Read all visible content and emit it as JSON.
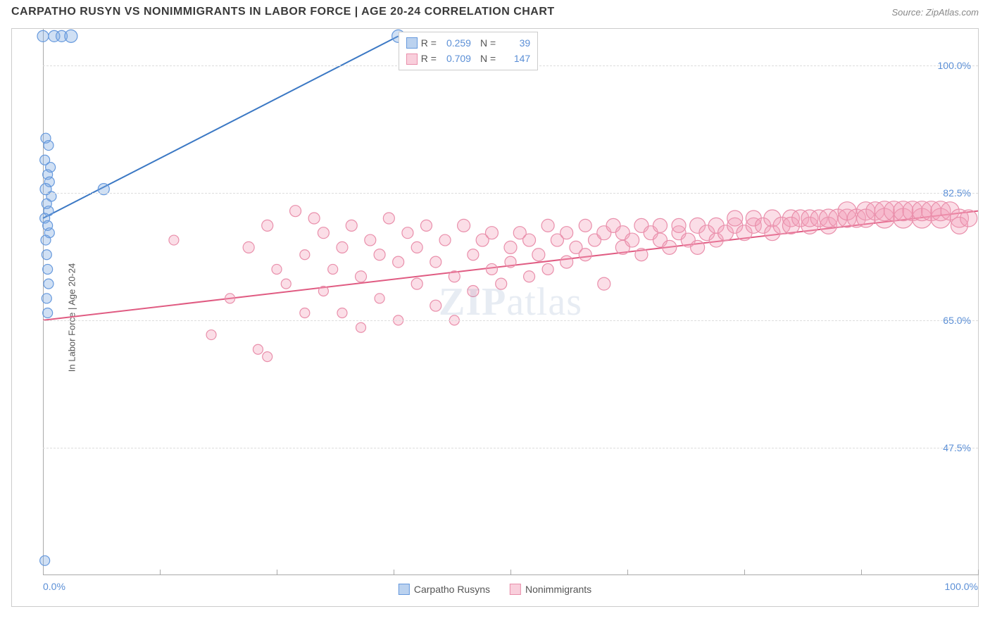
{
  "title": "CARPATHO RUSYN VS NONIMMIGRANTS IN LABOR FORCE | AGE 20-24 CORRELATION CHART",
  "source": "Source: ZipAtlas.com",
  "watermark": "ZIPatlas",
  "chart": {
    "type": "scatter",
    "y_axis_label": "In Labor Force | Age 20-24",
    "xlim": [
      0,
      100
    ],
    "ylim": [
      30,
      105
    ],
    "x_ticks": [
      0,
      12.5,
      25,
      37.5,
      50,
      62.5,
      75,
      87.5,
      100
    ],
    "x_tick_labels": {
      "0": "0.0%",
      "100": "100.0%"
    },
    "y_ticks": [
      47.5,
      65.0,
      82.5,
      100.0
    ],
    "y_tick_labels": [
      "47.5%",
      "65.0%",
      "82.5%",
      "100.0%"
    ],
    "background_color": "#ffffff",
    "grid_color": "#dddddd",
    "axis_color": "#aaaaaa",
    "label_color": "#5b8fd6",
    "series": [
      {
        "name": "Carpatho Rusyns",
        "color_fill": "rgba(120,165,224,0.35)",
        "color_stroke": "#6699dd",
        "line_color": "#3b78c4",
        "line_width": 2,
        "points": [
          {
            "x": 0.0,
            "y": 104,
            "r": 8
          },
          {
            "x": 1.2,
            "y": 104,
            "r": 8
          },
          {
            "x": 2.0,
            "y": 104,
            "r": 8
          },
          {
            "x": 3.0,
            "y": 104,
            "r": 9
          },
          {
            "x": 0.3,
            "y": 90,
            "r": 7
          },
          {
            "x": 0.6,
            "y": 89,
            "r": 7
          },
          {
            "x": 0.2,
            "y": 87,
            "r": 7
          },
          {
            "x": 0.8,
            "y": 86,
            "r": 7
          },
          {
            "x": 0.5,
            "y": 85,
            "r": 7
          },
          {
            "x": 0.7,
            "y": 84,
            "r": 7
          },
          {
            "x": 0.3,
            "y": 83,
            "r": 8
          },
          {
            "x": 0.9,
            "y": 82,
            "r": 7
          },
          {
            "x": 0.4,
            "y": 81,
            "r": 7
          },
          {
            "x": 0.6,
            "y": 80,
            "r": 7
          },
          {
            "x": 0.2,
            "y": 79,
            "r": 7
          },
          {
            "x": 0.5,
            "y": 78,
            "r": 7
          },
          {
            "x": 0.7,
            "y": 77,
            "r": 7
          },
          {
            "x": 0.3,
            "y": 76,
            "r": 7
          },
          {
            "x": 0.4,
            "y": 74,
            "r": 7
          },
          {
            "x": 0.5,
            "y": 72,
            "r": 7
          },
          {
            "x": 0.6,
            "y": 70,
            "r": 7
          },
          {
            "x": 0.4,
            "y": 68,
            "r": 7
          },
          {
            "x": 0.5,
            "y": 66,
            "r": 7
          },
          {
            "x": 6.5,
            "y": 83,
            "r": 8
          },
          {
            "x": 38,
            "y": 104,
            "r": 9
          },
          {
            "x": 0.2,
            "y": 32,
            "r": 7
          }
        ],
        "trend": {
          "x1": 0,
          "y1": 79,
          "x2": 38,
          "y2": 104
        },
        "stats": {
          "R": "0.259",
          "N": "39"
        }
      },
      {
        "name": "Nonimmigrants",
        "color_fill": "rgba(244,160,185,0.35)",
        "color_stroke": "#e98fab",
        "line_color": "#e05b82",
        "line_width": 2,
        "points": [
          {
            "x": 14,
            "y": 76,
            "r": 7
          },
          {
            "x": 18,
            "y": 63,
            "r": 7
          },
          {
            "x": 20,
            "y": 68,
            "r": 7
          },
          {
            "x": 22,
            "y": 75,
            "r": 8
          },
          {
            "x": 23,
            "y": 61,
            "r": 7
          },
          {
            "x": 24,
            "y": 60,
            "r": 7
          },
          {
            "x": 24,
            "y": 78,
            "r": 8
          },
          {
            "x": 25,
            "y": 72,
            "r": 7
          },
          {
            "x": 26,
            "y": 70,
            "r": 7
          },
          {
            "x": 27,
            "y": 80,
            "r": 8
          },
          {
            "x": 28,
            "y": 74,
            "r": 7
          },
          {
            "x": 28,
            "y": 66,
            "r": 7
          },
          {
            "x": 29,
            "y": 79,
            "r": 8
          },
          {
            "x": 30,
            "y": 69,
            "r": 7
          },
          {
            "x": 30,
            "y": 77,
            "r": 8
          },
          {
            "x": 31,
            "y": 72,
            "r": 7
          },
          {
            "x": 32,
            "y": 66,
            "r": 7
          },
          {
            "x": 32,
            "y": 75,
            "r": 8
          },
          {
            "x": 33,
            "y": 78,
            "r": 8
          },
          {
            "x": 34,
            "y": 71,
            "r": 8
          },
          {
            "x": 34,
            "y": 64,
            "r": 7
          },
          {
            "x": 35,
            "y": 76,
            "r": 8
          },
          {
            "x": 36,
            "y": 74,
            "r": 8
          },
          {
            "x": 36,
            "y": 68,
            "r": 7
          },
          {
            "x": 37,
            "y": 79,
            "r": 8
          },
          {
            "x": 38,
            "y": 73,
            "r": 8
          },
          {
            "x": 38,
            "y": 65,
            "r": 7
          },
          {
            "x": 39,
            "y": 77,
            "r": 8
          },
          {
            "x": 40,
            "y": 70,
            "r": 8
          },
          {
            "x": 40,
            "y": 75,
            "r": 8
          },
          {
            "x": 41,
            "y": 78,
            "r": 8
          },
          {
            "x": 42,
            "y": 67,
            "r": 8
          },
          {
            "x": 42,
            "y": 73,
            "r": 8
          },
          {
            "x": 43,
            "y": 76,
            "r": 8
          },
          {
            "x": 44,
            "y": 71,
            "r": 8
          },
          {
            "x": 44,
            "y": 65,
            "r": 7
          },
          {
            "x": 45,
            "y": 78,
            "r": 9
          },
          {
            "x": 46,
            "y": 74,
            "r": 8
          },
          {
            "x": 46,
            "y": 69,
            "r": 8
          },
          {
            "x": 47,
            "y": 76,
            "r": 9
          },
          {
            "x": 48,
            "y": 72,
            "r": 8
          },
          {
            "x": 48,
            "y": 77,
            "r": 9
          },
          {
            "x": 49,
            "y": 70,
            "r": 8
          },
          {
            "x": 50,
            "y": 75,
            "r": 9
          },
          {
            "x": 50,
            "y": 73,
            "r": 8
          },
          {
            "x": 51,
            "y": 77,
            "r": 9
          },
          {
            "x": 52,
            "y": 71,
            "r": 8
          },
          {
            "x": 52,
            "y": 76,
            "r": 9
          },
          {
            "x": 53,
            "y": 74,
            "r": 9
          },
          {
            "x": 54,
            "y": 78,
            "r": 9
          },
          {
            "x": 54,
            "y": 72,
            "r": 8
          },
          {
            "x": 55,
            "y": 76,
            "r": 9
          },
          {
            "x": 56,
            "y": 73,
            "r": 9
          },
          {
            "x": 56,
            "y": 77,
            "r": 9
          },
          {
            "x": 57,
            "y": 75,
            "r": 9
          },
          {
            "x": 58,
            "y": 78,
            "r": 9
          },
          {
            "x": 58,
            "y": 74,
            "r": 9
          },
          {
            "x": 59,
            "y": 76,
            "r": 9
          },
          {
            "x": 60,
            "y": 77,
            "r": 10
          },
          {
            "x": 60,
            "y": 70,
            "r": 9
          },
          {
            "x": 61,
            "y": 78,
            "r": 10
          },
          {
            "x": 62,
            "y": 75,
            "r": 10
          },
          {
            "x": 62,
            "y": 77,
            "r": 10
          },
          {
            "x": 63,
            "y": 76,
            "r": 10
          },
          {
            "x": 64,
            "y": 78,
            "r": 10
          },
          {
            "x": 64,
            "y": 74,
            "r": 9
          },
          {
            "x": 65,
            "y": 77,
            "r": 10
          },
          {
            "x": 66,
            "y": 76,
            "r": 10
          },
          {
            "x": 66,
            "y": 78,
            "r": 10
          },
          {
            "x": 67,
            "y": 75,
            "r": 10
          },
          {
            "x": 68,
            "y": 77,
            "r": 10
          },
          {
            "x": 68,
            "y": 78,
            "r": 10
          },
          {
            "x": 69,
            "y": 76,
            "r": 10
          },
          {
            "x": 70,
            "y": 78,
            "r": 11
          },
          {
            "x": 70,
            "y": 75,
            "r": 10
          },
          {
            "x": 71,
            "y": 77,
            "r": 11
          },
          {
            "x": 72,
            "y": 78,
            "r": 11
          },
          {
            "x": 72,
            "y": 76,
            "r": 10
          },
          {
            "x": 73,
            "y": 77,
            "r": 11
          },
          {
            "x": 74,
            "y": 78,
            "r": 11
          },
          {
            "x": 74,
            "y": 79,
            "r": 11
          },
          {
            "x": 75,
            "y": 77,
            "r": 11
          },
          {
            "x": 76,
            "y": 78,
            "r": 11
          },
          {
            "x": 76,
            "y": 79,
            "r": 11
          },
          {
            "x": 77,
            "y": 78,
            "r": 11
          },
          {
            "x": 78,
            "y": 79,
            "r": 12
          },
          {
            "x": 78,
            "y": 77,
            "r": 11
          },
          {
            "x": 79,
            "y": 78,
            "r": 12
          },
          {
            "x": 80,
            "y": 79,
            "r": 12
          },
          {
            "x": 80,
            "y": 78,
            "r": 12
          },
          {
            "x": 81,
            "y": 79,
            "r": 12
          },
          {
            "x": 82,
            "y": 78,
            "r": 12
          },
          {
            "x": 82,
            "y": 79,
            "r": 12
          },
          {
            "x": 83,
            "y": 79,
            "r": 12
          },
          {
            "x": 84,
            "y": 78,
            "r": 12
          },
          {
            "x": 84,
            "y": 79,
            "r": 13
          },
          {
            "x": 85,
            "y": 79,
            "r": 13
          },
          {
            "x": 86,
            "y": 79,
            "r": 13
          },
          {
            "x": 86,
            "y": 80,
            "r": 13
          },
          {
            "x": 87,
            "y": 79,
            "r": 13
          },
          {
            "x": 88,
            "y": 80,
            "r": 13
          },
          {
            "x": 88,
            "y": 79,
            "r": 13
          },
          {
            "x": 89,
            "y": 80,
            "r": 13
          },
          {
            "x": 90,
            "y": 79,
            "r": 14
          },
          {
            "x": 90,
            "y": 80,
            "r": 14
          },
          {
            "x": 91,
            "y": 80,
            "r": 14
          },
          {
            "x": 92,
            "y": 79,
            "r": 14
          },
          {
            "x": 92,
            "y": 80,
            "r": 14
          },
          {
            "x": 93,
            "y": 80,
            "r": 14
          },
          {
            "x": 94,
            "y": 79,
            "r": 14
          },
          {
            "x": 94,
            "y": 80,
            "r": 14
          },
          {
            "x": 95,
            "y": 80,
            "r": 14
          },
          {
            "x": 96,
            "y": 79,
            "r": 14
          },
          {
            "x": 96,
            "y": 80,
            "r": 14
          },
          {
            "x": 97,
            "y": 80,
            "r": 13
          },
          {
            "x": 98,
            "y": 79,
            "r": 13
          },
          {
            "x": 98,
            "y": 78,
            "r": 12
          },
          {
            "x": 99,
            "y": 79,
            "r": 12
          }
        ],
        "trend": {
          "x1": 0,
          "y1": 65,
          "x2": 100,
          "y2": 80
        },
        "stats": {
          "R": "0.709",
          "N": "147"
        }
      }
    ]
  },
  "legend_bottom": [
    {
      "label": "Carpatho Rusyns",
      "fill": "rgba(120,165,224,0.5)",
      "stroke": "#6699dd"
    },
    {
      "label": "Nonimmigrants",
      "fill": "rgba(244,160,185,0.5)",
      "stroke": "#e98fab"
    }
  ]
}
